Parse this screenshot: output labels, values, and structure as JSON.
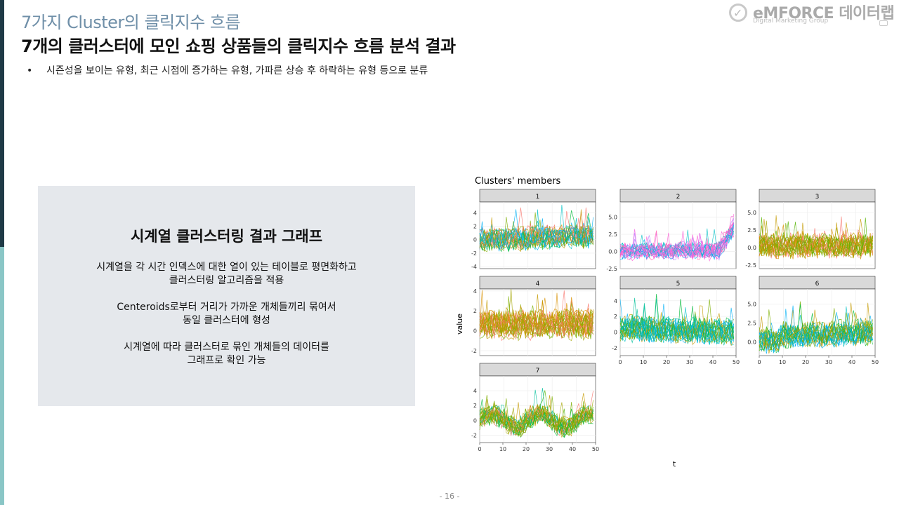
{
  "header": {
    "eyebrow": "7가지 Cluster의 클릭지수 흐름",
    "headline": "7개의 클러스터에 모인 쇼핑 상품들의 클릭지수 흐름 분석 결과",
    "bullet": "시즌성을 보이는 유형, 최근 시점에 증가하는 유형, 가파른 상승 후 하락하는 유형 등으로 분류"
  },
  "logo": {
    "brand": "eMFORCE 데이터랩",
    "sub": "Digital Marketing Group"
  },
  "panel": {
    "title": "시계열 클러스터링 결과 그래프",
    "paragraphs": [
      [
        "시계열을 각 시간 인덱스에 대한 열이 있는 테이블로 평면화하고",
        "클러스터링 알고리즘을 적용"
      ],
      [
        "Centeroids로부터 거리가 가까운 개체들끼리 묶여서",
        "동일 클러스터에 형성"
      ],
      [
        "시계열에 따라 클러스터로 묶인 개체들의 데이터를",
        "그래프로 확인 가능"
      ]
    ]
  },
  "page_number": "- 16 -",
  "chart_data": {
    "type": "line",
    "title": "Clusters' members",
    "xlabel": "t",
    "ylabel": "value",
    "x_ticks": [
      "0",
      "10",
      "20",
      "30",
      "40",
      "50"
    ],
    "xlim": [
      0,
      48
    ],
    "panels": [
      {
        "label": "1",
        "ylim": [
          -4.3,
          5.6
        ],
        "y_ticks": [
          4,
          2,
          0,
          -2,
          -4
        ],
        "y_tick_labels": [
          "4",
          "2",
          "0",
          "-2",
          "-4"
        ],
        "base": 0,
        "amp": 1.6,
        "trend": 0.6,
        "colors": [
          "#00b0f6",
          "#00bfc4",
          "#7cae00",
          "#00ba38",
          "#c49a00",
          "#f8766d"
        ]
      },
      {
        "label": "2",
        "ylim": [
          -2.5,
          7.2
        ],
        "y_ticks": [
          5,
          2.5,
          0,
          -2.5
        ],
        "y_tick_labels": [
          "5.0",
          "2.5",
          "0.0",
          "-2.5"
        ],
        "base": 0.1,
        "amp": 1.1,
        "trend": 0,
        "colors": [
          "#f564e3",
          "#fb61d7",
          "#ff64b0",
          "#b983ff",
          "#00b0f6",
          "#00bfc4"
        ]
      },
      {
        "label": "3",
        "ylim": [
          -3,
          6.5
        ],
        "y_ticks": [
          5,
          2.5,
          0,
          -2.5
        ],
        "y_tick_labels": [
          "5.0",
          "2.5",
          "0.0",
          "-2.5"
        ],
        "base": 0.3,
        "amp": 1.6,
        "trend": 0,
        "colors": [
          "#c49a00",
          "#a3a500",
          "#7cae00",
          "#f8766d",
          "#d89000",
          "#53b400"
        ]
      },
      {
        "label": "4",
        "ylim": [
          -2.5,
          4.2
        ],
        "y_ticks": [
          4,
          2,
          0,
          -2
        ],
        "y_tick_labels": [
          "4",
          "2",
          "0",
          "-2"
        ],
        "base": 0.6,
        "amp": 1.3,
        "trend": 0,
        "colors": [
          "#c49a00",
          "#a3a500",
          "#d89000",
          "#7cae00",
          "#f8766d"
        ]
      },
      {
        "label": "5",
        "ylim": [
          -3,
          5.5
        ],
        "y_ticks": [
          4,
          2,
          0,
          -2
        ],
        "y_tick_labels": [
          "4",
          "2",
          "0",
          "-2"
        ],
        "base": 0.5,
        "amp": 1.5,
        "trend": -0.4,
        "colors": [
          "#00bfc4",
          "#00c19a",
          "#00ba38",
          "#7cae00",
          "#c49a00",
          "#00b0f6"
        ]
      },
      {
        "label": "6",
        "ylim": [
          -1.8,
          7
        ],
        "y_ticks": [
          5,
          2.5,
          0
        ],
        "y_tick_labels": [
          "5.0",
          "2.5",
          "0.0"
        ],
        "base": 0.2,
        "amp": 1.5,
        "trend": 0.5,
        "colors": [
          "#00b0f6",
          "#00bfc4",
          "#00ba38",
          "#7cae00",
          "#c49a00"
        ]
      },
      {
        "label": "7",
        "ylim": [
          -3,
          6
        ],
        "y_ticks": [
          4,
          2,
          0,
          -2
        ],
        "y_tick_labels": [
          "4",
          "2",
          "0",
          "-2"
        ],
        "base": 0,
        "amp": 1.2,
        "trend": 0,
        "colors": [
          "#00ba38",
          "#53b400",
          "#7cae00",
          "#a3a500",
          "#c49a00",
          "#00c19a",
          "#f8766d"
        ]
      }
    ]
  }
}
